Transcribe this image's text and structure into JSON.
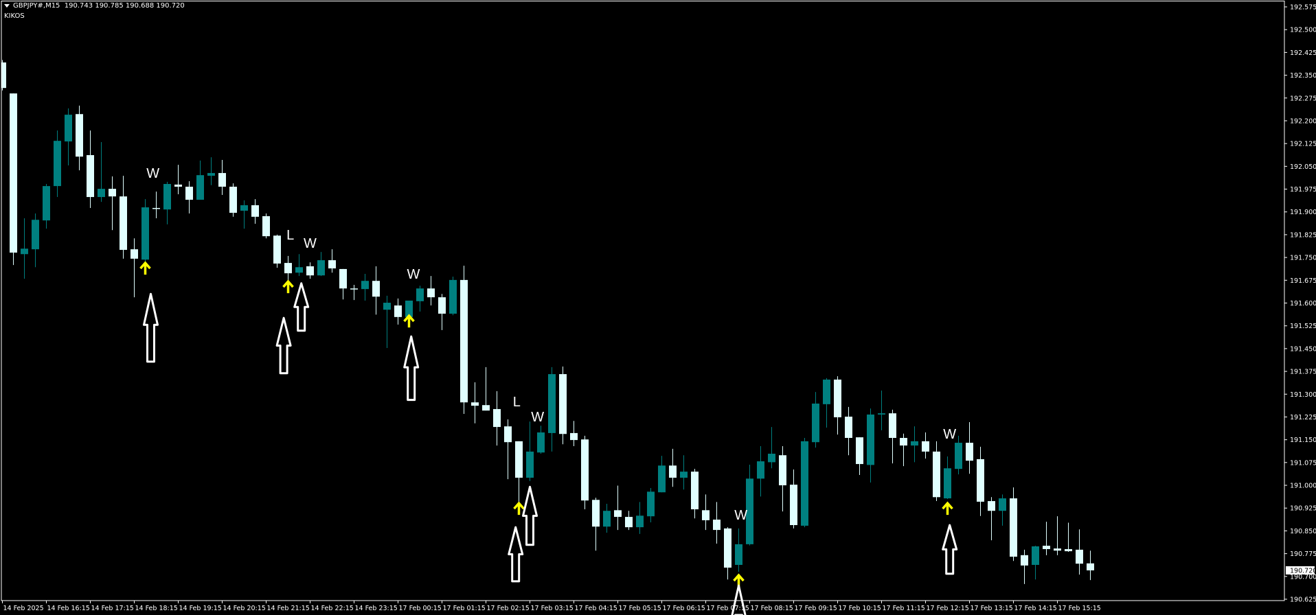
{
  "header": {
    "symbol": "GBPJPY#,M15",
    "open": "190.743",
    "high": "190.785",
    "low": "190.688",
    "close": "190.720",
    "indicator_name": "KIKOS"
  },
  "colors": {
    "background": "#000000",
    "bull_candle": "#008080",
    "bear_candle": "#e0ffff",
    "axis": "#ffffff",
    "signal_arrow": "#ffff00",
    "marker_arrow": "#ffffff",
    "price_box": "#ffffff"
  },
  "chart_data": {
    "type": "candlestick",
    "price_axis": {
      "range": [
        190.625,
        192.575
      ],
      "ticks": [
        "192.575",
        "192.500",
        "192.425",
        "192.350",
        "192.275",
        "192.200",
        "192.125",
        "192.050",
        "191.975",
        "191.900",
        "191.825",
        "191.750",
        "191.675",
        "191.600",
        "191.525",
        "191.450",
        "191.375",
        "191.300",
        "191.225",
        "191.150",
        "191.075",
        "191.000",
        "190.925",
        "190.850",
        "190.775",
        "190.700",
        "190.625"
      ],
      "current_price": "190.720"
    },
    "time_axis": {
      "labels": [
        {
          "bar": 0,
          "text": "14 Feb 2025"
        },
        {
          "bar": 4,
          "text": "14 Feb 16:15"
        },
        {
          "bar": 8,
          "text": "14 Feb 17:15"
        },
        {
          "bar": 12,
          "text": "14 Feb 18:15"
        },
        {
          "bar": 16,
          "text": "14 Feb 19:15"
        },
        {
          "bar": 20,
          "text": "14 Feb 20:15"
        },
        {
          "bar": 24,
          "text": "14 Feb 21:15"
        },
        {
          "bar": 28,
          "text": "14 Feb 22:15"
        },
        {
          "bar": 32,
          "text": "14 Feb 23:15"
        },
        {
          "bar": 36,
          "text": "17 Feb 00:15"
        },
        {
          "bar": 40,
          "text": "17 Feb 01:15"
        },
        {
          "bar": 44,
          "text": "17 Feb 02:15"
        },
        {
          "bar": 48,
          "text": "17 Feb 03:15"
        },
        {
          "bar": 52,
          "text": "17 Feb 04:15"
        },
        {
          "bar": 56,
          "text": "17 Feb 05:15"
        },
        {
          "bar": 60,
          "text": "17 Feb 06:15"
        },
        {
          "bar": 64,
          "text": "17 Feb 07:15"
        },
        {
          "bar": 68,
          "text": "17 Feb 08:15"
        },
        {
          "bar": 72,
          "text": "17 Feb 09:15"
        },
        {
          "bar": 76,
          "text": "17 Feb 10:15"
        },
        {
          "bar": 80,
          "text": "17 Feb 11:15"
        },
        {
          "bar": 84,
          "text": "17 Feb 12:15"
        },
        {
          "bar": 88,
          "text": "17 Feb 13:15"
        },
        {
          "bar": 92,
          "text": "17 Feb 14:15"
        },
        {
          "bar": 96,
          "text": "17 Feb 15:15"
        }
      ]
    },
    "ohlc_fields": [
      "open",
      "high",
      "low",
      "close"
    ],
    "candles": [
      [
        192.392,
        192.4,
        192.3,
        192.308
      ],
      [
        192.29,
        192.29,
        191.725,
        191.766
      ],
      [
        191.761,
        191.879,
        191.68,
        191.779
      ],
      [
        191.777,
        191.895,
        191.718,
        191.874
      ],
      [
        191.872,
        191.992,
        191.845,
        191.985
      ],
      [
        191.985,
        192.168,
        191.949,
        192.134
      ],
      [
        192.132,
        192.241,
        192.053,
        192.22
      ],
      [
        192.222,
        192.25,
        192.037,
        192.082
      ],
      [
        192.087,
        192.168,
        191.913,
        191.949
      ],
      [
        191.949,
        192.13,
        191.933,
        191.976
      ],
      [
        191.976,
        192.017,
        191.84,
        191.951
      ],
      [
        191.951,
        192.019,
        191.746,
        191.775
      ],
      [
        191.777,
        191.813,
        191.619,
        191.746
      ],
      [
        191.743,
        191.942,
        191.734,
        191.915
      ],
      [
        191.913,
        191.967,
        191.879,
        191.91
      ],
      [
        191.908,
        191.999,
        191.859,
        191.992
      ],
      [
        191.99,
        192.055,
        191.958,
        191.983
      ],
      [
        191.983,
        192.001,
        191.895,
        191.94
      ],
      [
        191.94,
        192.069,
        191.94,
        192.021
      ],
      [
        192.019,
        192.08,
        191.988,
        192.028
      ],
      [
        192.028,
        192.071,
        191.956,
        191.983
      ],
      [
        191.983,
        191.994,
        191.884,
        191.897
      ],
      [
        191.904,
        191.938,
        191.845,
        191.922
      ],
      [
        191.922,
        191.942,
        191.861,
        191.884
      ],
      [
        191.886,
        191.895,
        191.813,
        191.82
      ],
      [
        191.822,
        191.825,
        191.716,
        191.73
      ],
      [
        191.732,
        191.755,
        191.671,
        191.698
      ],
      [
        191.7,
        191.761,
        191.689,
        191.718
      ],
      [
        191.721,
        191.734,
        191.68,
        191.691
      ],
      [
        191.691,
        191.768,
        191.689,
        191.741
      ],
      [
        191.741,
        191.777,
        191.7,
        191.714
      ],
      [
        191.712,
        191.712,
        191.612,
        191.648
      ],
      [
        191.648,
        191.66,
        191.61,
        191.646
      ],
      [
        191.646,
        191.696,
        191.608,
        191.673
      ],
      [
        191.673,
        191.721,
        191.562,
        191.621
      ],
      [
        191.578,
        191.624,
        191.452,
        191.601
      ],
      [
        191.592,
        191.615,
        191.529,
        191.554
      ],
      [
        191.554,
        191.608,
        191.554,
        191.608
      ],
      [
        191.606,
        191.657,
        191.572,
        191.648
      ],
      [
        191.648,
        191.689,
        191.592,
        191.619
      ],
      [
        191.619,
        191.63,
        191.511,
        191.565
      ],
      [
        191.565,
        191.687,
        191.56,
        191.676
      ],
      [
        191.676,
        191.723,
        191.235,
        191.273
      ],
      [
        191.273,
        191.339,
        191.204,
        191.262
      ],
      [
        191.264,
        191.389,
        191.246,
        191.246
      ],
      [
        191.251,
        191.31,
        191.131,
        191.192
      ],
      [
        191.194,
        191.217,
        191.02,
        191.142
      ],
      [
        191.145,
        191.145,
        190.903,
        191.025
      ],
      [
        191.025,
        191.21,
        191.014,
        191.111
      ],
      [
        191.108,
        191.196,
        191.104,
        191.174
      ],
      [
        191.172,
        191.389,
        191.111,
        191.366
      ],
      [
        191.366,
        191.391,
        191.135,
        191.169
      ],
      [
        191.172,
        191.212,
        191.129,
        191.149
      ],
      [
        191.151,
        191.163,
        190.921,
        190.95
      ],
      [
        190.952,
        190.959,
        190.785,
        190.864
      ],
      [
        190.864,
        190.939,
        190.844,
        190.916
      ],
      [
        190.918,
        190.999,
        190.853,
        190.896
      ],
      [
        190.896,
        190.916,
        190.853,
        190.862
      ],
      [
        190.862,
        190.945,
        190.84,
        190.9
      ],
      [
        190.898,
        190.991,
        190.878,
        190.979
      ],
      [
        190.977,
        191.097,
        190.977,
        191.065
      ],
      [
        191.065,
        191.12,
        190.995,
        191.025
      ],
      [
        191.025,
        191.099,
        190.986,
        191.045
      ],
      [
        191.045,
        191.054,
        190.891,
        190.921
      ],
      [
        190.918,
        190.97,
        190.853,
        190.885
      ],
      [
        190.887,
        190.945,
        190.808,
        190.853
      ],
      [
        190.858,
        190.862,
        190.69,
        190.729
      ],
      [
        190.738,
        190.858,
        190.715,
        190.806
      ],
      [
        190.806,
        191.068,
        190.802,
        191.022
      ],
      [
        191.022,
        191.129,
        190.963,
        191.079
      ],
      [
        191.076,
        191.192,
        191.056,
        191.104
      ],
      [
        191.099,
        191.129,
        190.914,
        191.0
      ],
      [
        191.002,
        191.052,
        190.858,
        190.869
      ],
      [
        190.867,
        191.156,
        190.862,
        191.145
      ],
      [
        191.142,
        191.307,
        191.124,
        191.269
      ],
      [
        191.267,
        191.353,
        191.19,
        191.348
      ],
      [
        191.348,
        191.359,
        191.167,
        191.224
      ],
      [
        191.226,
        191.258,
        191.099,
        191.156
      ],
      [
        191.158,
        191.158,
        191.034,
        191.07
      ],
      [
        191.067,
        191.253,
        191.009,
        191.233
      ],
      [
        191.233,
        191.312,
        191.181,
        191.237
      ],
      [
        191.237,
        191.249,
        191.072,
        191.156
      ],
      [
        191.156,
        191.17,
        191.063,
        191.131
      ],
      [
        191.131,
        191.194,
        191.076,
        191.145
      ],
      [
        191.145,
        191.174,
        191.088,
        191.111
      ],
      [
        191.111,
        191.145,
        190.948,
        190.961
      ],
      [
        190.957,
        191.095,
        190.955,
        191.056
      ],
      [
        191.054,
        191.163,
        191.036,
        191.14
      ],
      [
        191.14,
        191.208,
        191.038,
        191.081
      ],
      [
        191.086,
        191.127,
        190.899,
        190.946
      ],
      [
        190.948,
        190.961,
        190.819,
        190.916
      ],
      [
        190.916,
        190.97,
        190.867,
        190.957
      ],
      [
        190.957,
        190.993,
        190.751,
        190.765
      ],
      [
        190.77,
        190.788,
        190.675,
        190.736
      ],
      [
        190.738,
        190.801,
        190.69,
        190.799
      ],
      [
        190.801,
        190.88,
        190.77,
        190.79
      ],
      [
        190.792,
        190.898,
        190.77,
        190.785
      ],
      [
        190.79,
        190.877,
        190.781,
        190.783
      ],
      [
        190.788,
        190.855,
        190.706,
        190.742
      ],
      [
        190.743,
        190.785,
        190.688,
        190.72
      ]
    ],
    "signal_arrows": [
      {
        "bar": 13,
        "price": 191.732
      },
      {
        "bar": 26,
        "price": 191.671
      },
      {
        "bar": 37,
        "price": 191.558
      },
      {
        "bar": 47,
        "price": 190.941
      },
      {
        "bar": 67,
        "price": 190.704
      },
      {
        "bar": 86,
        "price": 190.941
      }
    ],
    "marker_arrows": [
      {
        "bar": 13.5,
        "tip": 191.63,
        "tail": 191.407
      },
      {
        "bar": 25.6,
        "tip": 191.551,
        "tail": 191.369
      },
      {
        "bar": 27.2,
        "tip": 191.665,
        "tail": 191.509
      },
      {
        "bar": 37.2,
        "tip": 191.49,
        "tail": 191.281
      },
      {
        "bar": 46.7,
        "tip": 190.862,
        "tail": 190.684
      },
      {
        "bar": 48,
        "tip": 190.995,
        "tail": 190.804
      },
      {
        "bar": 67,
        "tip": 190.67,
        "tail": 190.45
      },
      {
        "bar": 86.2,
        "tip": 190.869,
        "tail": 190.709
      }
    ],
    "text_markers": [
      {
        "bar": 13.7,
        "price": 192.028,
        "text": "W"
      },
      {
        "bar": 26.2,
        "price": 191.825,
        "text": "L"
      },
      {
        "bar": 28,
        "price": 191.798,
        "text": "W"
      },
      {
        "bar": 37.4,
        "price": 191.696,
        "text": "W"
      },
      {
        "bar": 46.8,
        "price": 191.276,
        "text": "L"
      },
      {
        "bar": 48.7,
        "price": 191.226,
        "text": "W"
      },
      {
        "bar": 67.2,
        "price": 190.903,
        "text": "W"
      },
      {
        "bar": 86.2,
        "price": 191.169,
        "text": "W"
      }
    ]
  }
}
